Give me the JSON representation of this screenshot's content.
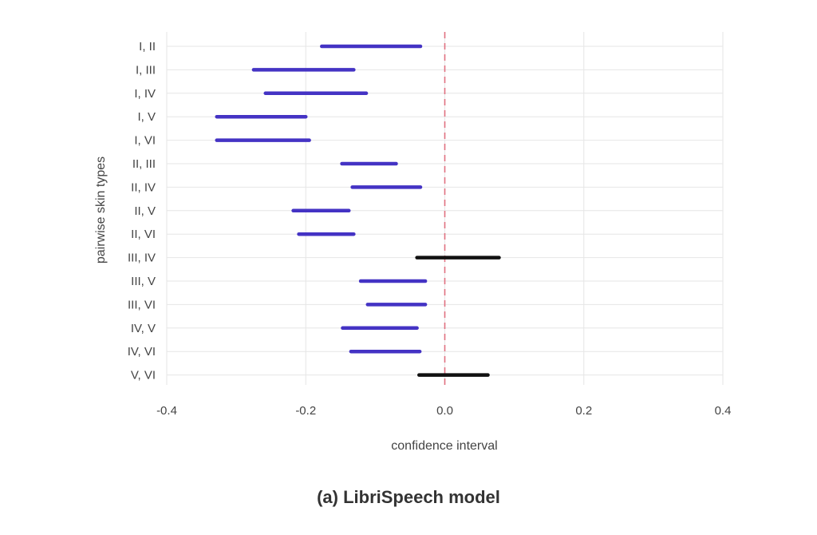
{
  "chart_data": {
    "type": "interval",
    "xlabel": "confidence interval",
    "ylabel": "pairwise skin types",
    "xlim": [
      -0.4,
      0.4
    ],
    "xticks": [
      -0.4,
      -0.2,
      0.0,
      0.2,
      0.4
    ],
    "xtick_labels": [
      "-0.4",
      "-0.2",
      "0.0",
      "0.2",
      "0.4"
    ],
    "reference_line": 0.0,
    "grid": true,
    "colors": {
      "significant": "#4433c4",
      "not_significant": "#111111",
      "reference_line": "#e07080",
      "grid": "#e6e6e6"
    },
    "categories": [
      "I, II",
      "I, III",
      "I, IV",
      "I, V",
      "I, VI",
      "II, III",
      "II, IV",
      "II, V",
      "II, VI",
      "III, IV",
      "III, V",
      "III, VI",
      "IV, V",
      "IV, VI",
      "V, VI"
    ],
    "intervals": [
      {
        "label": "I, II",
        "low": -0.177,
        "high": -0.035,
        "significant": true
      },
      {
        "label": "I, III",
        "low": -0.275,
        "high": -0.131,
        "significant": true
      },
      {
        "label": "I, IV",
        "low": -0.258,
        "high": -0.113,
        "significant": true
      },
      {
        "label": "I, V",
        "low": -0.328,
        "high": -0.2,
        "significant": true
      },
      {
        "label": "I, VI",
        "low": -0.328,
        "high": -0.195,
        "significant": true
      },
      {
        "label": "II, III",
        "low": -0.148,
        "high": -0.07,
        "significant": true
      },
      {
        "label": "II, IV",
        "low": -0.133,
        "high": -0.035,
        "significant": true
      },
      {
        "label": "II, V",
        "low": -0.218,
        "high": -0.138,
        "significant": true
      },
      {
        "label": "II, VI",
        "low": -0.21,
        "high": -0.131,
        "significant": true
      },
      {
        "label": "III, IV",
        "low": -0.04,
        "high": 0.078,
        "significant": false
      },
      {
        "label": "III, V",
        "low": -0.121,
        "high": -0.028,
        "significant": true
      },
      {
        "label": "III, VI",
        "low": -0.111,
        "high": -0.028,
        "significant": true
      },
      {
        "label": "IV, V",
        "low": -0.147,
        "high": -0.04,
        "significant": true
      },
      {
        "label": "IV, VI",
        "low": -0.135,
        "high": -0.036,
        "significant": true
      },
      {
        "label": "V, VI",
        "low": -0.037,
        "high": 0.062,
        "significant": false
      }
    ]
  },
  "caption": "(a) LibriSpeech model"
}
